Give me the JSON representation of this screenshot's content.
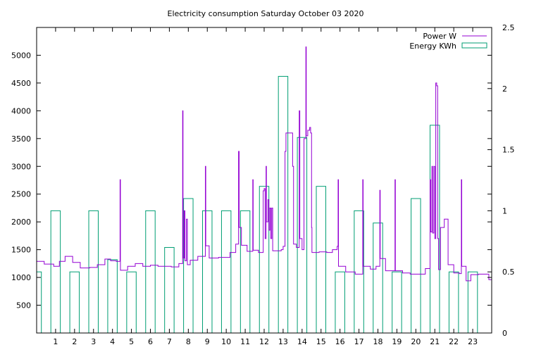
{
  "chart_data": {
    "type": "line",
    "title": "Electricity consumption Saturday October 03 2020",
    "xlabel": "",
    "ylabel": "",
    "x_ticks": [
      "1",
      "2",
      "3",
      "4",
      "5",
      "6",
      "7",
      "8",
      "9",
      "10",
      "11",
      "12",
      "13",
      "14",
      "15",
      "16",
      "17",
      "18",
      "19",
      "20",
      "21",
      "22",
      "23"
    ],
    "xlim": [
      0,
      24
    ],
    "ylim_left": [
      0,
      5500
    ],
    "y_ticks_left": [
      "500",
      "1000",
      "1500",
      "2000",
      "2500",
      "3000",
      "3500",
      "4000",
      "4500",
      "5000"
    ],
    "ylim_right": [
      0,
      2.5
    ],
    "y_ticks_right": [
      "0",
      "0.5",
      "1",
      "1.5",
      "2",
      "2.5"
    ],
    "legend_position": "top-right",
    "grid": false,
    "colors": {
      "power": "#9400d3",
      "energy": "#009e73"
    },
    "series": [
      {
        "name": "Power W",
        "axis": "left",
        "style": "steps",
        "points": [
          [
            0,
            1290
          ],
          [
            0.4,
            1240
          ],
          [
            0.9,
            1200
          ],
          [
            1.2,
            1290
          ],
          [
            1.5,
            1380
          ],
          [
            1.9,
            1270
          ],
          [
            2.3,
            1170
          ],
          [
            2.8,
            1180
          ],
          [
            3.2,
            1230
          ],
          [
            3.6,
            1330
          ],
          [
            3.9,
            1300
          ],
          [
            4.2,
            1290
          ],
          [
            4.4,
            2760
          ],
          [
            4.42,
            1130
          ],
          [
            4.8,
            1200
          ],
          [
            5.2,
            1250
          ],
          [
            5.6,
            1200
          ],
          [
            6.0,
            1220
          ],
          [
            6.4,
            1200
          ],
          [
            7.1,
            1190
          ],
          [
            7.5,
            1250
          ],
          [
            7.7,
            4000
          ],
          [
            7.72,
            1350
          ],
          [
            7.78,
            2200
          ],
          [
            7.82,
            1300
          ],
          [
            7.9,
            2050
          ],
          [
            7.95,
            1230
          ],
          [
            8.1,
            1310
          ],
          [
            8.5,
            1380
          ],
          [
            8.9,
            3000
          ],
          [
            8.92,
            1570
          ],
          [
            9.1,
            1350
          ],
          [
            9.6,
            1360
          ],
          [
            10.2,
            1450
          ],
          [
            10.5,
            1600
          ],
          [
            10.65,
            3270
          ],
          [
            10.68,
            1900
          ],
          [
            10.8,
            1580
          ],
          [
            11.1,
            1470
          ],
          [
            11.4,
            2760
          ],
          [
            11.42,
            1490
          ],
          [
            11.7,
            1450
          ],
          [
            11.95,
            2560
          ],
          [
            12.0,
            2600
          ],
          [
            12.05,
            1700
          ],
          [
            12.1,
            3000
          ],
          [
            12.12,
            2000
          ],
          [
            12.2,
            2400
          ],
          [
            12.25,
            1850
          ],
          [
            12.3,
            2250
          ],
          [
            12.35,
            1700
          ],
          [
            12.4,
            2250
          ],
          [
            12.45,
            1480
          ],
          [
            12.7,
            1480
          ],
          [
            12.9,
            1500
          ],
          [
            13.0,
            1560
          ],
          [
            13.1,
            3270
          ],
          [
            13.15,
            3600
          ],
          [
            13.5,
            3000
          ],
          [
            13.55,
            1600
          ],
          [
            13.7,
            1540
          ],
          [
            13.85,
            4000
          ],
          [
            13.88,
            1700
          ],
          [
            14.0,
            1500
          ],
          [
            14.1,
            3500
          ],
          [
            14.2,
            5150
          ],
          [
            14.22,
            3550
          ],
          [
            14.3,
            3650
          ],
          [
            14.4,
            3700
          ],
          [
            14.45,
            3600
          ],
          [
            14.5,
            1900
          ],
          [
            14.52,
            1450
          ],
          [
            14.9,
            1460
          ],
          [
            15.3,
            1450
          ],
          [
            15.6,
            1500
          ],
          [
            15.85,
            1560
          ],
          [
            15.9,
            2760
          ],
          [
            15.92,
            1200
          ],
          [
            16.3,
            1100
          ],
          [
            16.8,
            1060
          ],
          [
            17.2,
            2760
          ],
          [
            17.22,
            1200
          ],
          [
            17.6,
            1150
          ],
          [
            17.9,
            1200
          ],
          [
            18.1,
            2570
          ],
          [
            18.12,
            1340
          ],
          [
            18.4,
            1120
          ],
          [
            18.9,
            2760
          ],
          [
            18.92,
            1120
          ],
          [
            19.3,
            1080
          ],
          [
            19.7,
            1060
          ],
          [
            20.5,
            1160
          ],
          [
            20.75,
            2760
          ],
          [
            20.78,
            1820
          ],
          [
            20.85,
            3000
          ],
          [
            20.88,
            1800
          ],
          [
            20.95,
            3000
          ],
          [
            21.0,
            1700
          ],
          [
            21.05,
            4500
          ],
          [
            21.1,
            4450
          ],
          [
            21.15,
            1700
          ],
          [
            21.2,
            1140
          ],
          [
            21.3,
            1900
          ],
          [
            21.5,
            2050
          ],
          [
            21.7,
            1230
          ],
          [
            22.0,
            1080
          ],
          [
            22.3,
            1070
          ],
          [
            22.4,
            2760
          ],
          [
            22.42,
            1200
          ],
          [
            22.65,
            940
          ],
          [
            22.9,
            1050
          ],
          [
            23.3,
            1060
          ],
          [
            23.85,
            960
          ],
          [
            24,
            960
          ]
        ]
      },
      {
        "name": "Energy KWh",
        "axis": "right",
        "style": "boxes",
        "values": [
          0.5,
          1.0,
          0.5,
          1.0,
          0.6,
          0.5,
          1.0,
          0.7,
          1.1,
          1.0,
          1.0,
          1.0,
          1.2,
          2.1,
          1.6,
          1.2,
          0.5,
          1.0,
          0.9,
          0.5,
          1.1,
          1.7,
          0.5,
          0.5
        ]
      }
    ]
  }
}
